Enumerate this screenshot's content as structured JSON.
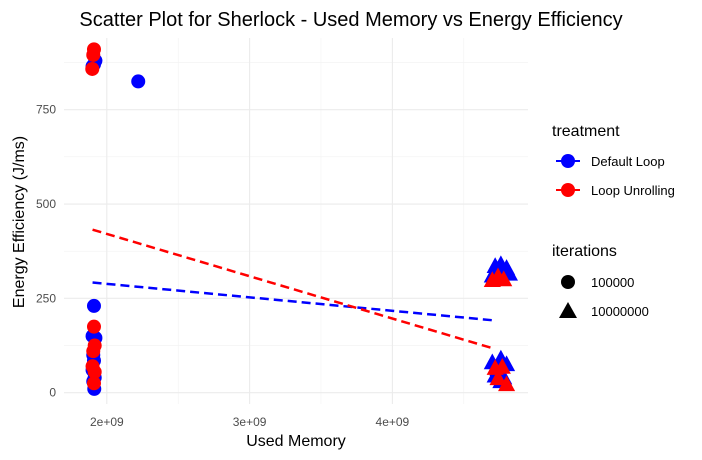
{
  "chart_data": {
    "type": "scatter",
    "title": "Scatter Plot for Sherlock - Used Memory vs Energy Efficiency",
    "xlabel": "Used Memory",
    "ylabel": "Energy Efficiency (J/ms)",
    "xlim": [
      1700000000,
      4950000000
    ],
    "ylim": [
      -30,
      940
    ],
    "x_ticks": [
      2000000000,
      3000000000,
      4000000000
    ],
    "x_tick_labels": [
      "2e+09",
      "3e+09",
      "4e+09"
    ],
    "y_ticks": [
      0,
      250,
      500,
      750
    ],
    "y_tick_labels": [
      "0",
      "250",
      "500",
      "750"
    ],
    "grid": true,
    "legend_position": "right",
    "legend": {
      "treatment": {
        "title": "treatment",
        "items": [
          {
            "label": "Default Loop",
            "color": "#0000ff"
          },
          {
            "label": "Loop Unrolling",
            "color": "#ff0000"
          }
        ]
      },
      "iterations": {
        "title": "iterations",
        "items": [
          {
            "label": "100000",
            "shape": "circle"
          },
          {
            "label": "10000000",
            "shape": "triangle"
          }
        ]
      }
    },
    "colors": {
      "Default Loop": "#0000ff",
      "Loop Unrolling": "#ff0000"
    },
    "series": [
      {
        "name": "Default Loop",
        "color": "#0000ff",
        "points": [
          {
            "x": 1920000000,
            "y": 880,
            "shape": "circle"
          },
          {
            "x": 1910000000,
            "y": 870,
            "shape": "circle"
          },
          {
            "x": 1900000000,
            "y": 865,
            "shape": "circle"
          },
          {
            "x": 2220000000,
            "y": 825,
            "shape": "circle"
          },
          {
            "x": 1910000000,
            "y": 230,
            "shape": "circle"
          },
          {
            "x": 1900000000,
            "y": 150,
            "shape": "circle"
          },
          {
            "x": 1920000000,
            "y": 145,
            "shape": "circle"
          },
          {
            "x": 1905000000,
            "y": 100,
            "shape": "circle"
          },
          {
            "x": 1910000000,
            "y": 85,
            "shape": "circle"
          },
          {
            "x": 1900000000,
            "y": 60,
            "shape": "circle"
          },
          {
            "x": 1915000000,
            "y": 40,
            "shape": "circle"
          },
          {
            "x": 1905000000,
            "y": 30,
            "shape": "circle"
          },
          {
            "x": 1912000000,
            "y": 10,
            "shape": "circle"
          },
          {
            "x": 4720000000,
            "y": 335,
            "shape": "triangle"
          },
          {
            "x": 4760000000,
            "y": 340,
            "shape": "triangle"
          },
          {
            "x": 4800000000,
            "y": 330,
            "shape": "triangle"
          },
          {
            "x": 4740000000,
            "y": 318,
            "shape": "triangle"
          },
          {
            "x": 4780000000,
            "y": 322,
            "shape": "triangle"
          },
          {
            "x": 4700000000,
            "y": 310,
            "shape": "triangle"
          },
          {
            "x": 4820000000,
            "y": 315,
            "shape": "triangle"
          },
          {
            "x": 4700000000,
            "y": 80,
            "shape": "triangle"
          },
          {
            "x": 4760000000,
            "y": 90,
            "shape": "triangle"
          },
          {
            "x": 4800000000,
            "y": 75,
            "shape": "triangle"
          },
          {
            "x": 4740000000,
            "y": 62,
            "shape": "triangle"
          },
          {
            "x": 4720000000,
            "y": 45,
            "shape": "triangle"
          },
          {
            "x": 4780000000,
            "y": 40,
            "shape": "triangle"
          },
          {
            "x": 4760000000,
            "y": 30,
            "shape": "triangle"
          }
        ],
        "trend": {
          "x": [
            1900000000,
            4700000000
          ],
          "y": [
            292,
            192
          ]
        }
      },
      {
        "name": "Loop Unrolling",
        "color": "#ff0000",
        "points": [
          {
            "x": 1910000000,
            "y": 910,
            "shape": "circle"
          },
          {
            "x": 1905000000,
            "y": 895,
            "shape": "circle"
          },
          {
            "x": 1898000000,
            "y": 858,
            "shape": "circle"
          },
          {
            "x": 1910000000,
            "y": 175,
            "shape": "circle"
          },
          {
            "x": 1915000000,
            "y": 125,
            "shape": "circle"
          },
          {
            "x": 1905000000,
            "y": 110,
            "shape": "circle"
          },
          {
            "x": 1900000000,
            "y": 70,
            "shape": "circle"
          },
          {
            "x": 1915000000,
            "y": 55,
            "shape": "circle"
          },
          {
            "x": 1910000000,
            "y": 25,
            "shape": "circle"
          },
          {
            "x": 4700000000,
            "y": 298,
            "shape": "triangle"
          },
          {
            "x": 4740000000,
            "y": 308,
            "shape": "triangle"
          },
          {
            "x": 4780000000,
            "y": 300,
            "shape": "triangle"
          },
          {
            "x": 4720000000,
            "y": 65,
            "shape": "triangle"
          },
          {
            "x": 4770000000,
            "y": 68,
            "shape": "triangle"
          },
          {
            "x": 4740000000,
            "y": 38,
            "shape": "triangle"
          },
          {
            "x": 4800000000,
            "y": 22,
            "shape": "triangle"
          }
        ],
        "trend": {
          "x": [
            1900000000,
            4700000000
          ],
          "y": [
            432,
            118
          ]
        }
      }
    ]
  }
}
